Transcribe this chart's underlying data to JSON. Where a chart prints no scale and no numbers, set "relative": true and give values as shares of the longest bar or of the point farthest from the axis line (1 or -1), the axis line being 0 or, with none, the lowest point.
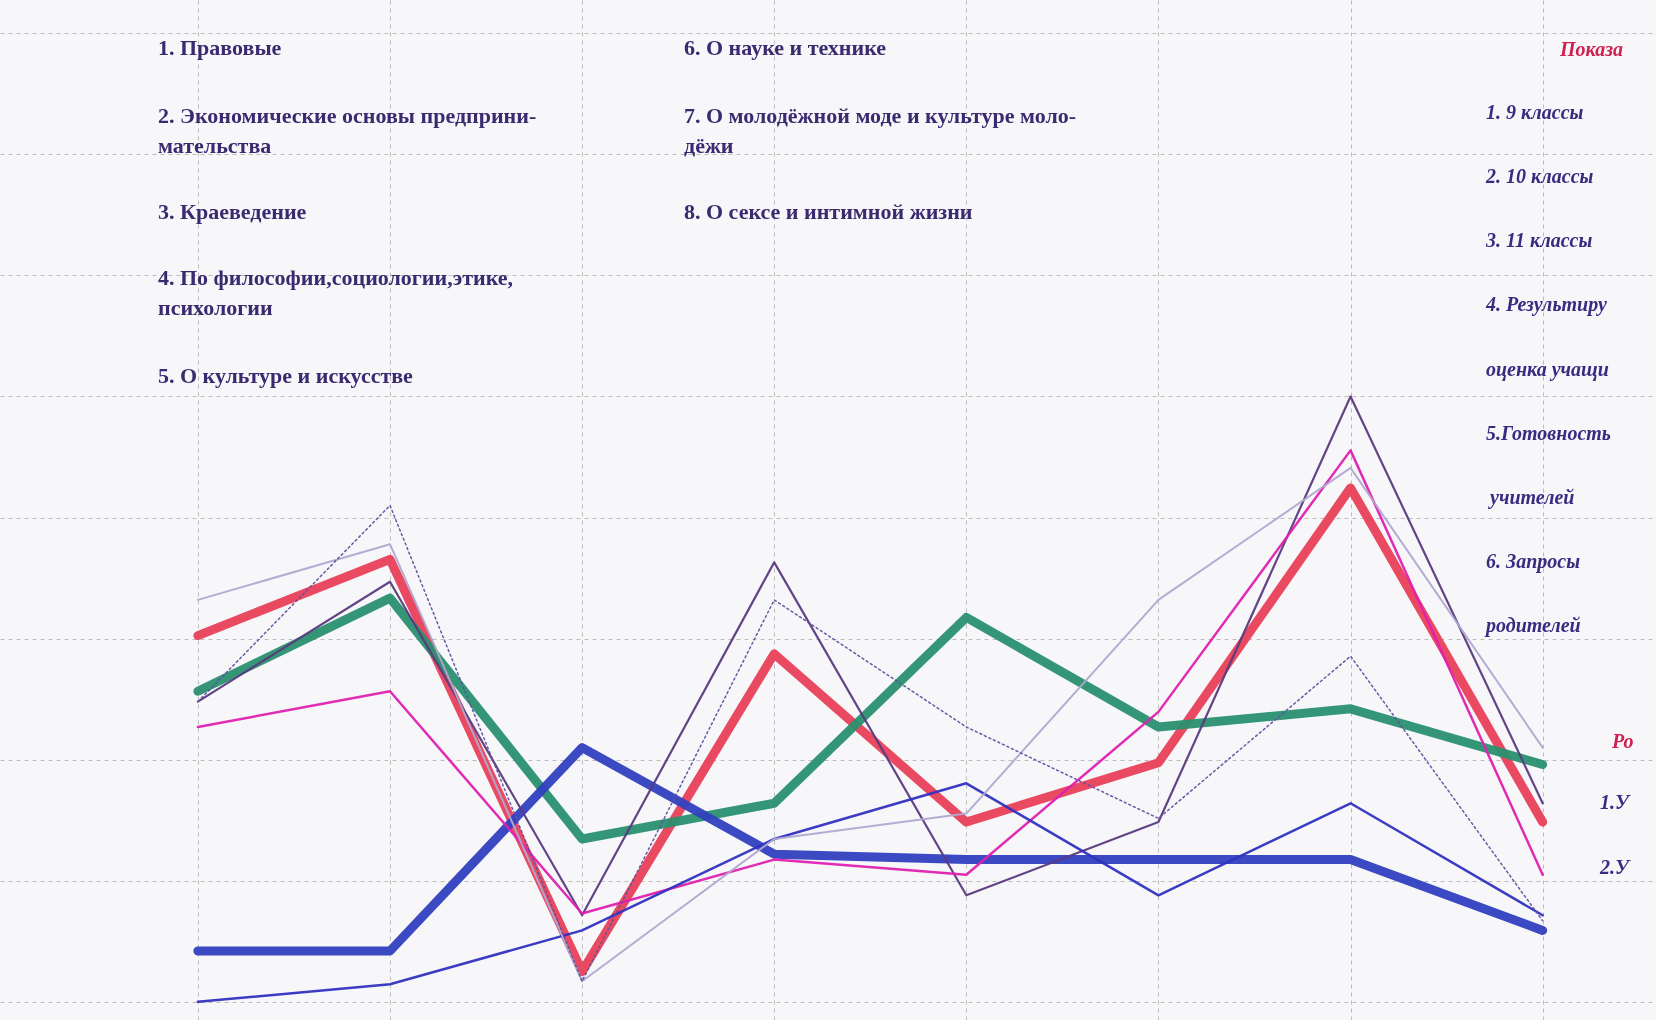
{
  "chart_data": {
    "type": "line",
    "relative": true,
    "grid": true,
    "categories": [
      null,
      null,
      null,
      null,
      null,
      null,
      null,
      null
    ],
    "series": [
      {
        "color": "#e8405a",
        "values": [
          0.605,
          0.731,
          0.05,
          0.575,
          0.297,
          0.395,
          0.849,
          0.297
        ]
      },
      {
        "color": "#2a9070",
        "values": [
          0.513,
          0.667,
          0.269,
          0.328,
          0.635,
          0.454,
          0.484,
          0.392
        ]
      },
      {
        "color": "#3040c0",
        "values": [
          0.084,
          0.084,
          0.42,
          0.244,
          0.235,
          0.235,
          0.235,
          0.118
        ]
      },
      {
        "color": "#5a3a80",
        "values": [
          0.496,
          0.694,
          0.143,
          0.726,
          0.176,
          0.297,
          1.0,
          0.328
        ]
      },
      {
        "color": "#e020b0",
        "values": [
          0.454,
          0.513,
          0.146,
          0.235,
          0.21,
          0.479,
          0.911,
          0.21
        ]
      },
      {
        "color": "#3030c0",
        "values": [
          0.0,
          0.029,
          0.118,
          0.269,
          0.361,
          0.176,
          0.328,
          0.143
        ]
      },
      {
        "color": "#b0a8d0",
        "values": [
          0.664,
          0.756,
          0.034,
          0.269,
          0.311,
          0.664,
          0.882,
          0.42
        ]
      },
      {
        "color": "#6050a0",
        "line_style": "dotted",
        "values": [
          0.496,
          0.82,
          0.034,
          0.664,
          0.454,
          0.303,
          0.571,
          0.134
        ]
      }
    ],
    "annotations": [
      "1.  Правовые",
      "2.  Экономические основы предприни-\n     мательства",
      "3.  Краеведение",
      "4.  По философии,социологии,этике,\n     психологии",
      "5.  О культуре и искусстве",
      "6.  О науке и технике",
      "7.  О молодёжной моде и культуре моло-\n     дёжи",
      "8.  О сексе и интимной жизни",
      "Показа",
      "1. 9 классы",
      "2. 10 классы",
      "3. 11 классы",
      "4. Результиру",
      "оценка учащи",
      "5.Готовность",
      "учителей",
      "6.   Запросы",
      "родителей",
      "Ро",
      "1.У",
      "2.У"
    ]
  }
}
